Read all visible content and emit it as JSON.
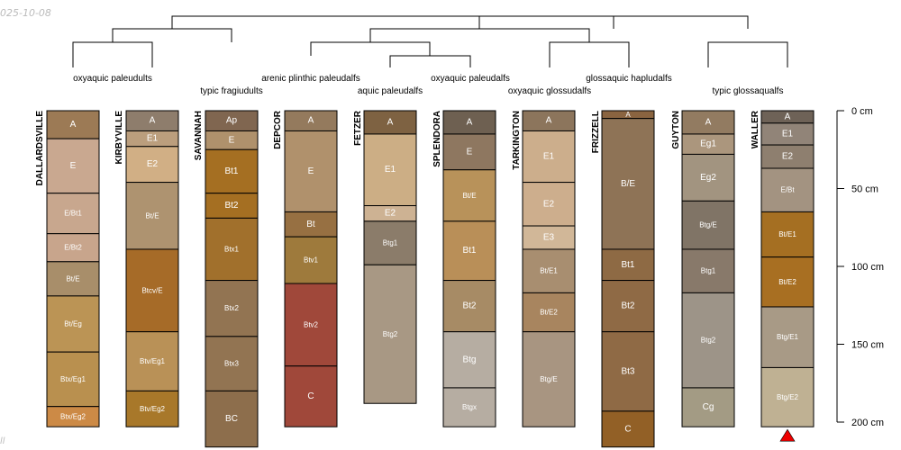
{
  "watermark": {
    "date": "025-10-08",
    "corner_note": "ll"
  },
  "chart_data": {
    "type": "soil-profile-sketch",
    "depth_unit": "cm",
    "depth_range": [
      0,
      200
    ],
    "depth_axis": {
      "ticks": [
        0,
        50,
        100,
        150,
        200
      ],
      "labels": [
        "0 cm",
        "50 cm",
        "100 cm",
        "150 cm",
        "200 cm"
      ]
    },
    "taxonomy_labels": [
      "oxyaquic paleudults",
      "typic fragiudults",
      "arenic plinthic paleudalfs",
      "aquic paleudalfs",
      "oxyaquic paleudalfs",
      "oxyaquic glossudalfs",
      "glossaquic hapludalfs",
      "typic glossaqualfs"
    ],
    "dendrogram_merges": [
      {
        "left": "FETZER",
        "right": "SPLENDORA"
      },
      {
        "left": "DEPCOR",
        "right": "FETZER + SPLENDORA"
      },
      {
        "left": "TARKINGTON",
        "right": "FRIZZELL"
      },
      {
        "left": "DEPCOR + FETZER + SPLENDORA",
        "right": "TARKINGTON + FRIZZELL"
      },
      {
        "left": "GUYTON",
        "right": "WALLER"
      },
      {
        "left": "DEPCOR ... FRIZZELL",
        "right": "GUYTON + WALLER"
      },
      {
        "left": "DALLARDSVILLE",
        "right": "KIRBYVILLE"
      },
      {
        "left": "DALLARDSVILLE + KIRBYVILLE",
        "right": "SAVANNAH"
      },
      {
        "left": "DALLARDSVILLE + KIRBYVILLE + SAVANNAH",
        "right": "DEPCOR ... WALLER"
      }
    ],
    "profiles": [
      {
        "name": "DALLARDSVILLE",
        "horizons": [
          {
            "name": "A",
            "top": 0,
            "bottom": 18,
            "color": "#9C7A55"
          },
          {
            "name": "E",
            "top": 18,
            "bottom": 53,
            "color": "#C9A890"
          },
          {
            "name": "E/Bt1",
            "top": 53,
            "bottom": 79,
            "color": "#C8A78E"
          },
          {
            "name": "E/Bt2",
            "top": 79,
            "bottom": 97,
            "color": "#C8A58C"
          },
          {
            "name": "Bt/E",
            "top": 97,
            "bottom": 119,
            "color": "#A88E6A"
          },
          {
            "name": "Bt/Eg",
            "top": 119,
            "bottom": 155,
            "color": "#BB9455"
          },
          {
            "name": "Btx/Eg1",
            "top": 155,
            "bottom": 190,
            "color": "#B9904F"
          },
          {
            "name": "Btx/Eg2",
            "top": 190,
            "bottom": 203,
            "color": "#CC8A46"
          }
        ]
      },
      {
        "name": "KIRBYVILLE",
        "horizons": [
          {
            "name": "A",
            "top": 0,
            "bottom": 13,
            "color": "#8E7D6C"
          },
          {
            "name": "E1",
            "top": 13,
            "bottom": 23,
            "color": "#BB9E7D"
          },
          {
            "name": "E2",
            "top": 23,
            "bottom": 46,
            "color": "#D1AF85"
          },
          {
            "name": "Bt/E",
            "top": 46,
            "bottom": 89,
            "color": "#AE9370"
          },
          {
            "name": "Btcv/E",
            "top": 89,
            "bottom": 142,
            "color": "#A66B28"
          },
          {
            "name": "Btv/Eg1",
            "top": 142,
            "bottom": 180,
            "color": "#B99157"
          },
          {
            "name": "Btv/Eg2",
            "top": 180,
            "bottom": 203,
            "color": "#A8782A"
          }
        ]
      },
      {
        "name": "SAVANNAH",
        "horizons": [
          {
            "name": "Ap",
            "top": 0,
            "bottom": 13,
            "color": "#806650"
          },
          {
            "name": "E",
            "top": 13,
            "bottom": 25,
            "color": "#AF916C"
          },
          {
            "name": "Bt1",
            "top": 25,
            "bottom": 53,
            "color": "#A56F22"
          },
          {
            "name": "Bt2",
            "top": 53,
            "bottom": 69,
            "color": "#A56F22"
          },
          {
            "name": "Btx1",
            "top": 69,
            "bottom": 109,
            "color": "#A1702C"
          },
          {
            "name": "Btx2",
            "top": 109,
            "bottom": 145,
            "color": "#927452"
          },
          {
            "name": "Btx3",
            "top": 145,
            "bottom": 180,
            "color": "#927452"
          },
          {
            "name": "BC",
            "top": 180,
            "bottom": 216,
            "color": "#8D6E4C"
          }
        ]
      },
      {
        "name": "DEPCOR",
        "horizons": [
          {
            "name": "A",
            "top": 0,
            "bottom": 13,
            "color": "#947A5D"
          },
          {
            "name": "E",
            "top": 13,
            "bottom": 65,
            "color": "#B0916C"
          },
          {
            "name": "Bt",
            "top": 65,
            "bottom": 81,
            "color": "#977042"
          },
          {
            "name": "Btv1",
            "top": 81,
            "bottom": 111,
            "color": "#9E7A3C"
          },
          {
            "name": "Btv2",
            "top": 111,
            "bottom": 164,
            "color": "#A0483A"
          },
          {
            "name": "C",
            "top": 164,
            "bottom": 203,
            "color": "#A0483A"
          }
        ]
      },
      {
        "name": "FETZER",
        "horizons": [
          {
            "name": "A",
            "top": 0,
            "bottom": 15,
            "color": "#7E6242"
          },
          {
            "name": "E1",
            "top": 15,
            "bottom": 61,
            "color": "#CCAE85"
          },
          {
            "name": "E2",
            "top": 61,
            "bottom": 71,
            "color": "#CDB293"
          },
          {
            "name": "Btg1",
            "top": 71,
            "bottom": 99,
            "color": "#8B7C6A"
          },
          {
            "name": "Btg2",
            "top": 99,
            "bottom": 188,
            "color": "#A89884"
          }
        ]
      },
      {
        "name": "SPLENDORA",
        "horizons": [
          {
            "name": "A",
            "top": 0,
            "bottom": 15,
            "color": "#6E6051"
          },
          {
            "name": "E",
            "top": 15,
            "bottom": 38,
            "color": "#8E7760"
          },
          {
            "name": "Bt/E",
            "top": 38,
            "bottom": 71,
            "color": "#B8925A"
          },
          {
            "name": "Bt1",
            "top": 71,
            "bottom": 109,
            "color": "#B98F58"
          },
          {
            "name": "Bt2",
            "top": 109,
            "bottom": 142,
            "color": "#A78B65"
          },
          {
            "name": "Btg",
            "top": 142,
            "bottom": 178,
            "color": "#B6ADA2"
          },
          {
            "name": "Btgx",
            "top": 178,
            "bottom": 203,
            "color": "#B6ADA2"
          }
        ]
      },
      {
        "name": "TARKINGTON",
        "horizons": [
          {
            "name": "A",
            "top": 0,
            "bottom": 13,
            "color": "#8C755C"
          },
          {
            "name": "E1",
            "top": 13,
            "bottom": 46,
            "color": "#CCAE8C"
          },
          {
            "name": "E2",
            "top": 46,
            "bottom": 74,
            "color": "#CDAE8D"
          },
          {
            "name": "E3",
            "top": 74,
            "bottom": 89,
            "color": "#D1B798"
          },
          {
            "name": "Bt/E1",
            "top": 89,
            "bottom": 117,
            "color": "#A88E70"
          },
          {
            "name": "Bt/E2",
            "top": 117,
            "bottom": 142,
            "color": "#A8855F"
          },
          {
            "name": "Btg/E",
            "top": 142,
            "bottom": 203,
            "color": "#A89581"
          }
        ]
      },
      {
        "name": "FRIZZELL",
        "horizons": [
          {
            "name": "A",
            "top": 0,
            "bottom": 5,
            "color": "#8A6440"
          },
          {
            "name": "B/E",
            "top": 5,
            "bottom": 89,
            "color": "#8E7356"
          },
          {
            "name": "Bt1",
            "top": 89,
            "bottom": 109,
            "color": "#8E6A44"
          },
          {
            "name": "Bt2",
            "top": 109,
            "bottom": 142,
            "color": "#8F6A45"
          },
          {
            "name": "Bt3",
            "top": 142,
            "bottom": 193,
            "color": "#8F6A45"
          },
          {
            "name": "C",
            "top": 193,
            "bottom": 216,
            "color": "#926026"
          }
        ]
      },
      {
        "name": "GUYTON",
        "horizons": [
          {
            "name": "A",
            "top": 0,
            "bottom": 15,
            "color": "#927B61"
          },
          {
            "name": "Eg1",
            "top": 15,
            "bottom": 28,
            "color": "#AB967D"
          },
          {
            "name": "Eg2",
            "top": 28,
            "bottom": 58,
            "color": "#A29480"
          },
          {
            "name": "Btg/E",
            "top": 58,
            "bottom": 89,
            "color": "#807466"
          },
          {
            "name": "Btg1",
            "top": 89,
            "bottom": 117,
            "color": "#88796A"
          },
          {
            "name": "Btg2",
            "top": 117,
            "bottom": 178,
            "color": "#9D9488"
          },
          {
            "name": "Cg",
            "top": 178,
            "bottom": 203,
            "color": "#A39B84"
          }
        ]
      },
      {
        "name": "WALLER",
        "bottom_marker": true,
        "horizons": [
          {
            "name": "A",
            "top": 0,
            "bottom": 8,
            "color": "#6E6257"
          },
          {
            "name": "E1",
            "top": 8,
            "bottom": 22,
            "color": "#918478"
          },
          {
            "name": "E2",
            "top": 22,
            "bottom": 37,
            "color": "#8E7F6F"
          },
          {
            "name": "E/Bt",
            "top": 37,
            "bottom": 65,
            "color": "#A39381"
          },
          {
            "name": "Bt/E1",
            "top": 65,
            "bottom": 94,
            "color": "#A56F22"
          },
          {
            "name": "Bt/E2",
            "top": 94,
            "bottom": 126,
            "color": "#A86F22"
          },
          {
            "name": "Btg/E1",
            "top": 126,
            "bottom": 165,
            "color": "#A89A86"
          },
          {
            "name": "Btg/E2",
            "top": 165,
            "bottom": 203,
            "color": "#BFB193"
          }
        ]
      }
    ]
  }
}
